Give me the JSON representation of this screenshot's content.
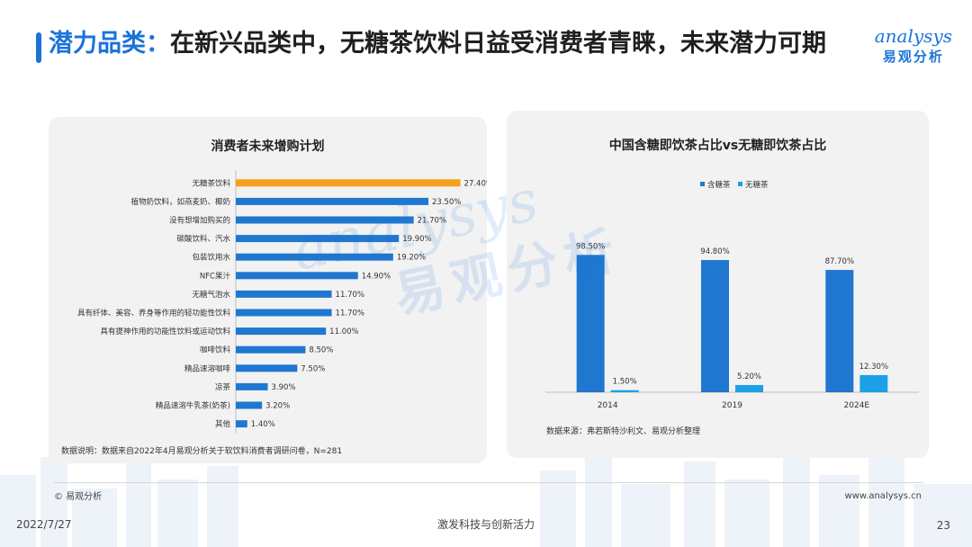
{
  "header": {
    "title_highlight": "潜力品类：",
    "title_rest": "在新兴品类中，无糖茶饮料日益受消费者青睐，未来潜力可期"
  },
  "logo": {
    "en": "analysys",
    "cn": "易观分析"
  },
  "watermark": {
    "en": "analysys",
    "cn": "易观分析"
  },
  "colors": {
    "accent": "#1a73d9",
    "highlight": "#f5a01a",
    "bar_blue": "#1f77d0",
    "bar_light": "#1da1e6"
  },
  "left_panel": {
    "note": "数据说明：数据来自2022年4月易观分析关于软饮料消费者调研问卷，N=281"
  },
  "right_panel": {
    "note": "数据来源：弗若斯特沙利文、易观分析整理"
  },
  "chart_data": [
    {
      "type": "bar",
      "orientation": "horizontal",
      "title": "消费者未来增购计划",
      "categories": [
        "无糖茶饮料",
        "植物奶饮料，如燕麦奶、椰奶",
        "没有想增加购买的",
        "碳酸饮料、汽水",
        "包装饮用水",
        "NFC果汁",
        "无糖气泡水",
        "具有纤体、美容、养身等作用的轻功能性饮料",
        "具有提神作用的功能性饮料或运动饮料",
        "咖啡饮料",
        "精品速溶咖啡",
        "凉茶",
        "精品速溶牛乳茶(奶茶)",
        "其他"
      ],
      "values": [
        27.4,
        23.5,
        21.7,
        19.9,
        19.2,
        14.9,
        11.7,
        11.7,
        11.0,
        8.5,
        7.5,
        3.9,
        3.2,
        1.4
      ],
      "labels": [
        "27.40%",
        "23.50%",
        "21.70%",
        "19.90%",
        "19.20%",
        "14.90%",
        "11.70%",
        "11.70%",
        "11.00%",
        "8.50%",
        "7.50%",
        "3.90%",
        "3.20%",
        "1.40%"
      ],
      "highlight_index": 0,
      "xlim": [
        0,
        28
      ]
    },
    {
      "type": "bar",
      "title": "中国含糖即饮茶占比vs无糖即饮茶占比",
      "categories": [
        "2014",
        "2019",
        "2024E"
      ],
      "series": [
        {
          "name": "含糖茶",
          "values": [
            98.5,
            94.8,
            87.7
          ],
          "labels": [
            "98.50%",
            "94.80%",
            "87.70%"
          ]
        },
        {
          "name": "无糖茶",
          "values": [
            1.5,
            5.2,
            12.3
          ],
          "labels": [
            "1.50%",
            "5.20%",
            "12.30%"
          ]
        }
      ],
      "legend": "top-center",
      "ylim": [
        0,
        100
      ]
    }
  ],
  "footer": {
    "copyright": "© 易观分析",
    "website": "www.analysys.cn",
    "date": "2022/7/27",
    "slogan": "激发科技与创新活力",
    "page": "23"
  }
}
